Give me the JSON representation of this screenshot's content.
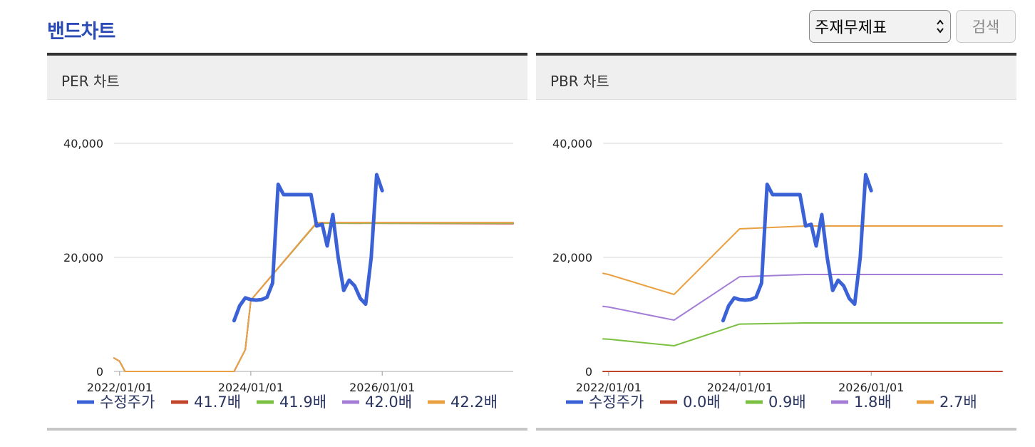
{
  "page": {
    "title": "밴드차트",
    "filter_value": "주재무제표",
    "search_label": "검색"
  },
  "chart_data": [
    {
      "type": "line",
      "title": "PER 차트",
      "ylim": [
        0,
        40000
      ],
      "yticks": [
        "0",
        "20,000",
        "40,000"
      ],
      "xticks": [
        "2022/01/01",
        "2024/01/01",
        "2026/01/01"
      ],
      "x_range": [
        "2021/12/01",
        "2027/12/31"
      ],
      "grid": true,
      "legend_position": "bottom",
      "series": [
        {
          "name": "수정주가",
          "color": "#3a62d6",
          "width": 5,
          "points": [
            [
              "2023/09/30",
              8900
            ],
            [
              "2023/10/31",
              11500
            ],
            [
              "2023/12/01",
              12900
            ],
            [
              "2023/12/31",
              12600
            ],
            [
              "2024/01/31",
              12500
            ],
            [
              "2024/03/01",
              12600
            ],
            [
              "2024/03/31",
              13000
            ],
            [
              "2024/05/01",
              15500
            ],
            [
              "2024/06/01",
              32800
            ],
            [
              "2024/07/01",
              31000
            ],
            [
              "2024/12/01",
              31000
            ],
            [
              "2025/01/01",
              25500
            ],
            [
              "2025/02/01",
              25800
            ],
            [
              "2025/03/01",
              22000
            ],
            [
              "2025/04/01",
              27500
            ],
            [
              "2025/05/01",
              20000
            ],
            [
              "2025/06/01",
              14200
            ],
            [
              "2025/07/01",
              16000
            ],
            [
              "2025/08/01",
              15000
            ],
            [
              "2025/09/01",
              12800
            ],
            [
              "2025/10/01",
              11800
            ],
            [
              "2025/11/01",
              20000
            ],
            [
              "2025/12/01",
              34500
            ],
            [
              "2026/01/01",
              31700
            ]
          ]
        },
        {
          "name": "41.7배",
          "color": "#c0452a",
          "width": 2,
          "points": [
            [
              "2021/12/01",
              2350
            ],
            [
              "2021/12/31",
              1800
            ],
            [
              "2022/01/31",
              0
            ],
            [
              "2023/09/30",
              0
            ],
            [
              "2023/12/01",
              3800
            ],
            [
              "2024/01/01",
              12500
            ],
            [
              "2025/01/01",
              26000
            ],
            [
              "2027/12/31",
              25900
            ]
          ]
        },
        {
          "name": "41.9배",
          "color": "#7bc043",
          "width": 2,
          "points": [
            [
              "2021/12/01",
              2350
            ],
            [
              "2021/12/31",
              1800
            ],
            [
              "2022/01/31",
              0
            ],
            [
              "2023/09/30",
              0
            ],
            [
              "2023/12/01",
              3800
            ],
            [
              "2024/01/01",
              12500
            ],
            [
              "2025/01/01",
              26000
            ],
            [
              "2027/12/31",
              26000
            ]
          ]
        },
        {
          "name": "42.0배",
          "color": "#a47ed6",
          "width": 2,
          "points": [
            [
              "2021/12/01",
              2350
            ],
            [
              "2021/12/31",
              1800
            ],
            [
              "2022/01/31",
              0
            ],
            [
              "2023/09/30",
              0
            ],
            [
              "2023/12/01",
              3800
            ],
            [
              "2024/01/01",
              12500
            ],
            [
              "2025/01/01",
              26100
            ],
            [
              "2027/12/31",
              26100
            ]
          ]
        },
        {
          "name": "42.2배",
          "color": "#e9a040",
          "width": 2,
          "points": [
            [
              "2021/12/01",
              2350
            ],
            [
              "2021/12/31",
              1800
            ],
            [
              "2022/01/31",
              0
            ],
            [
              "2023/09/30",
              0
            ],
            [
              "2023/12/01",
              3800
            ],
            [
              "2024/01/01",
              12500
            ],
            [
              "2025/01/01",
              26100
            ],
            [
              "2027/12/31",
              26100
            ]
          ]
        }
      ]
    },
    {
      "type": "line",
      "title": "PBR 차트",
      "ylim": [
        0,
        40000
      ],
      "yticks": [
        "0",
        "20,000",
        "40,000"
      ],
      "xticks": [
        "2022/01/01",
        "2024/01/01",
        "2026/01/01"
      ],
      "x_range": [
        "2021/12/01",
        "2027/12/31"
      ],
      "grid": true,
      "legend_position": "bottom",
      "series": [
        {
          "name": "수정주가",
          "color": "#3a62d6",
          "width": 5,
          "points": [
            [
              "2023/09/30",
              8900
            ],
            [
              "2023/10/31",
              11500
            ],
            [
              "2023/12/01",
              12900
            ],
            [
              "2023/12/31",
              12600
            ],
            [
              "2024/01/31",
              12500
            ],
            [
              "2024/03/01",
              12600
            ],
            [
              "2024/03/31",
              13000
            ],
            [
              "2024/05/01",
              15500
            ],
            [
              "2024/06/01",
              32800
            ],
            [
              "2024/07/01",
              31000
            ],
            [
              "2024/12/01",
              31000
            ],
            [
              "2025/01/01",
              25500
            ],
            [
              "2025/02/01",
              25800
            ],
            [
              "2025/03/01",
              22000
            ],
            [
              "2025/04/01",
              27500
            ],
            [
              "2025/05/01",
              20000
            ],
            [
              "2025/06/01",
              14200
            ],
            [
              "2025/07/01",
              16000
            ],
            [
              "2025/08/01",
              15000
            ],
            [
              "2025/09/01",
              12800
            ],
            [
              "2025/10/01",
              11800
            ],
            [
              "2025/11/01",
              20000
            ],
            [
              "2025/12/01",
              34500
            ],
            [
              "2026/01/01",
              31700
            ]
          ]
        },
        {
          "name": "0.0배",
          "color": "#c0452a",
          "width": 2,
          "points": [
            [
              "2021/12/01",
              0
            ],
            [
              "2027/12/31",
              0
            ]
          ]
        },
        {
          "name": "0.9배",
          "color": "#7bc043",
          "width": 2,
          "points": [
            [
              "2021/12/01",
              5700
            ],
            [
              "2021/12/31",
              5650
            ],
            [
              "2022/12/31",
              4500
            ],
            [
              "2023/12/31",
              8300
            ],
            [
              "2024/12/31",
              8500
            ],
            [
              "2027/12/31",
              8500
            ]
          ]
        },
        {
          "name": "1.8배",
          "color": "#a47ed6",
          "width": 2,
          "points": [
            [
              "2021/12/01",
              11400
            ],
            [
              "2021/12/31",
              11300
            ],
            [
              "2022/12/31",
              9000
            ],
            [
              "2023/12/31",
              16600
            ],
            [
              "2024/12/31",
              17000
            ],
            [
              "2027/12/31",
              17000
            ]
          ]
        },
        {
          "name": "2.7배",
          "color": "#e9a040",
          "width": 2,
          "points": [
            [
              "2021/12/01",
              17200
            ],
            [
              "2021/12/31",
              17000
            ],
            [
              "2022/12/31",
              13500
            ],
            [
              "2023/12/31",
              25000
            ],
            [
              "2024/12/31",
              25500
            ],
            [
              "2027/12/31",
              25500
            ]
          ]
        }
      ]
    }
  ]
}
